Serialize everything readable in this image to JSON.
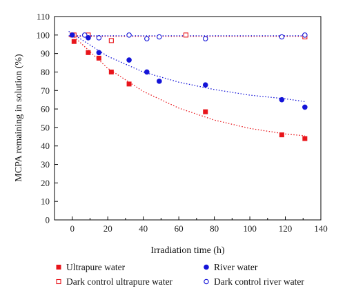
{
  "chart_data": {
    "type": "scatter",
    "xlabel": "Irradiation time (h)",
    "ylabel": "MCPA remaining in solution (%)",
    "xlim": [
      -10,
      140
    ],
    "ylim": [
      0,
      110
    ],
    "x_ticks": [
      0,
      20,
      40,
      60,
      80,
      100,
      120,
      140
    ],
    "y_ticks": [
      0,
      10,
      20,
      30,
      40,
      50,
      60,
      70,
      80,
      90,
      100,
      110
    ],
    "grid": false,
    "legend_position": "bottom",
    "series": [
      {
        "name": "Ultrapure water",
        "marker": "filled-square",
        "color": "#e8151b",
        "x": [
          0,
          1,
          9,
          15,
          22,
          32,
          75,
          118,
          131
        ],
        "y": [
          100,
          96.5,
          90.5,
          87.5,
          80,
          73.5,
          58.5,
          46,
          44
        ],
        "fit": {
          "x": [
            0,
            20,
            40,
            60,
            80,
            100,
            120,
            131
          ],
          "y": [
            100,
            82,
            69.5,
            60.5,
            54,
            49.5,
            46.5,
            45.5
          ]
        }
      },
      {
        "name": "Dark control ultrapure water",
        "marker": "open-square",
        "color": "#e8151b",
        "x": [
          1,
          9,
          22,
          64,
          131
        ],
        "y": [
          100,
          100,
          97,
          100,
          99
        ],
        "fit": {
          "x": [
            -2,
            131
          ],
          "y": [
            99.3,
            99.3
          ]
        }
      },
      {
        "name": "River water",
        "marker": "filled-circle",
        "color": "#1414d8",
        "x": [
          0,
          9,
          15,
          32,
          42,
          49,
          75,
          118,
          131
        ],
        "y": [
          100,
          98.5,
          90.5,
          86.5,
          80,
          75,
          73,
          65,
          61
        ],
        "fit": {
          "x": [
            -2,
            20,
            40,
            60,
            80,
            100,
            120,
            131
          ],
          "y": [
            102,
            88.5,
            80,
            74.5,
            70.5,
            67.5,
            65.5,
            64
          ]
        }
      },
      {
        "name": "Dark control river water",
        "marker": "open-circle",
        "color": "#1414d8",
        "x": [
          7,
          15,
          32,
          42,
          49,
          75,
          118,
          131
        ],
        "y": [
          100,
          98.5,
          100,
          98,
          99,
          98,
          99,
          100
        ],
        "fit": {
          "x": [
            -2,
            131
          ],
          "y": [
            99.6,
            99.6
          ]
        }
      }
    ]
  }
}
